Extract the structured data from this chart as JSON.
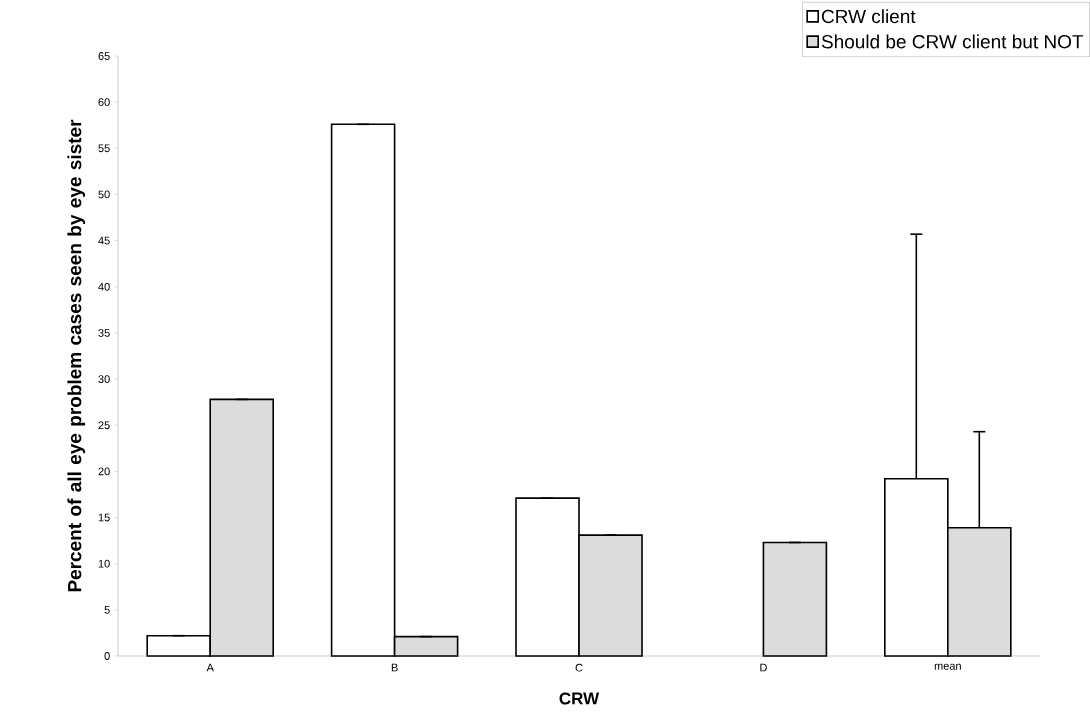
{
  "chart_data": {
    "type": "bar",
    "xlabel": "CRW",
    "ylabel": "Percent of all eye problem cases seen by eye sister",
    "categories": [
      "A",
      "B",
      "C",
      "D",
      "mean"
    ],
    "series": [
      {
        "name": "CRW client",
        "color": "#ffffff",
        "values": [
          2.2,
          57.6,
          17.1,
          null,
          19.2
        ],
        "errors": [
          null,
          null,
          null,
          null,
          26.5
        ]
      },
      {
        "name": "Should be CRW client but NOT",
        "color": "#dcdcdc",
        "values": [
          27.8,
          2.1,
          13.1,
          12.3,
          13.9
        ],
        "errors": [
          null,
          null,
          null,
          null,
          10.4
        ]
      }
    ],
    "ylim": [
      0,
      65
    ],
    "yticks": [
      0,
      5,
      10,
      15,
      20,
      25,
      30,
      35,
      40,
      45,
      50,
      55,
      60,
      65
    ],
    "legend": "top right"
  }
}
